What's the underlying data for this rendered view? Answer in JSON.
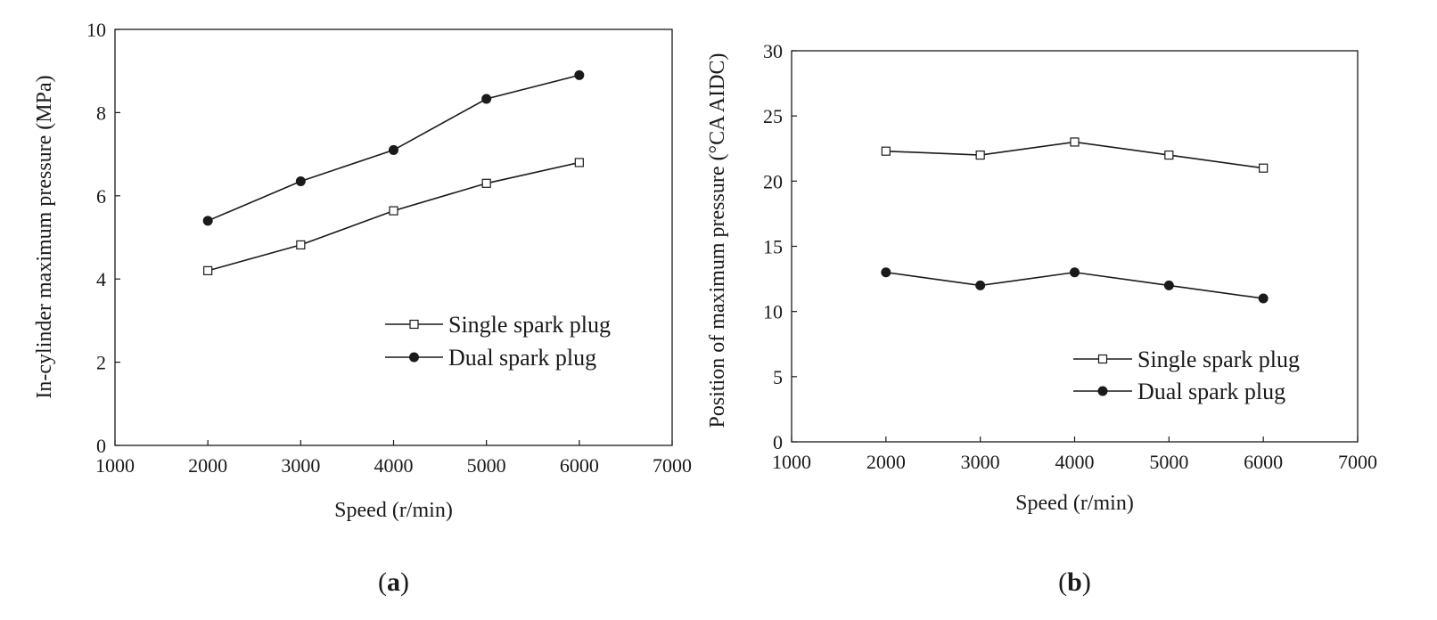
{
  "colors": {
    "ink": "#1a1a1a",
    "background": "#ffffff"
  },
  "chart_data": [
    {
      "type": "line",
      "panel_label": "(a)",
      "xlabel": "Speed (r/min)",
      "ylabel": "In-cylinder maximum pressure (MPa)",
      "xlim": [
        1000,
        7000
      ],
      "ylim": [
        0,
        10
      ],
      "xticks": [
        1000,
        2000,
        3000,
        4000,
        5000,
        6000,
        7000
      ],
      "yticks": [
        0,
        2,
        4,
        6,
        8,
        10
      ],
      "grid": false,
      "legend_position": "lower-right",
      "x": [
        2000,
        3000,
        4000,
        5000,
        6000
      ],
      "series": [
        {
          "name": "Single spark plug",
          "marker": "open-square",
          "values": [
            4.2,
            4.82,
            5.64,
            6.3,
            6.8
          ]
        },
        {
          "name": "Dual spark plug",
          "marker": "filled-circle",
          "values": [
            5.4,
            6.35,
            7.1,
            8.33,
            8.9
          ]
        }
      ]
    },
    {
      "type": "line",
      "panel_label": "(b)",
      "xlabel": "Speed (r/min)",
      "ylabel": "Position of maximum pressure (°CA AIDC)",
      "xlim": [
        1000,
        7000
      ],
      "ylim": [
        0,
        30
      ],
      "xticks": [
        1000,
        2000,
        3000,
        4000,
        5000,
        6000,
        7000
      ],
      "yticks": [
        0,
        5,
        10,
        15,
        20,
        25,
        30
      ],
      "grid": false,
      "legend_position": "lower-right",
      "x": [
        2000,
        3000,
        4000,
        5000,
        6000
      ],
      "series": [
        {
          "name": "Single spark plug",
          "marker": "open-square",
          "values": [
            22.3,
            22.0,
            23.0,
            22.0,
            21.0
          ]
        },
        {
          "name": "Dual spark plug",
          "marker": "filled-circle",
          "values": [
            13.0,
            12.0,
            13.0,
            12.0,
            11.0
          ]
        }
      ]
    }
  ]
}
